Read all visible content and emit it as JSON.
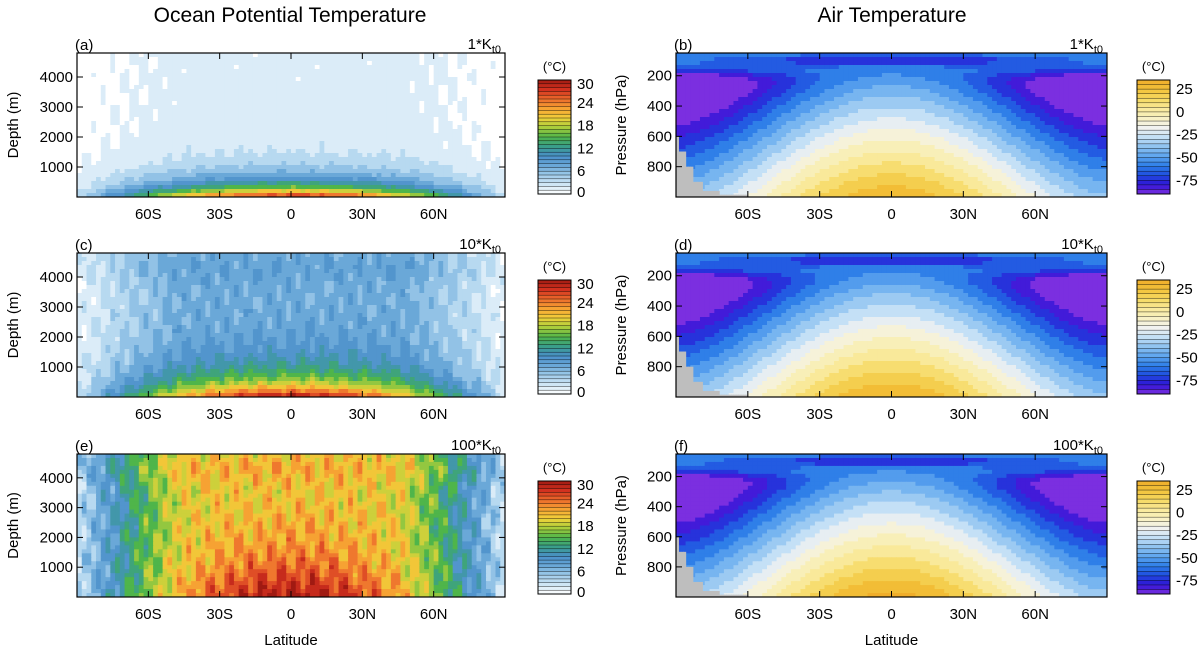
{
  "column_titles": [
    "Ocean Potential Temperature",
    "Air Temperature"
  ],
  "chart_data": [
    {
      "type": "heatmap",
      "id": "a",
      "panel_label": "(a)",
      "title": "1*K",
      "subscript": "t0",
      "ylabel": "Depth (m)",
      "xlabel": "",
      "xlim": [
        -90,
        90
      ],
      "xticks": [
        -60,
        -30,
        0,
        30,
        60
      ],
      "xticklabels": [
        "60S",
        "30S",
        "0",
        "30N",
        "60N"
      ],
      "ylim": [
        4800,
        0
      ],
      "yticks": [
        1000,
        2000,
        3000,
        4000
      ],
      "yticklabels": [
        "1000",
        "2000",
        "3000",
        "4000"
      ],
      "colorbar": {
        "unit": "(°C)",
        "levels": [
          0,
          30
        ],
        "ticks": [
          "30",
          "24",
          "18",
          "12",
          "6",
          "0"
        ],
        "scheme": "ocean"
      },
      "field": {
        "kind": "ocean",
        "surface": 28,
        "deep": 1.5,
        "thermocline": 500,
        "deep_warm": 0,
        "noise": 0.3
      }
    },
    {
      "type": "heatmap",
      "id": "b",
      "panel_label": "(b)",
      "title": "1*K",
      "subscript": "t0",
      "ylabel": "Pressure (hPa)",
      "xlabel": "",
      "xlim": [
        -90,
        90
      ],
      "xticks": [
        -60,
        -30,
        0,
        30,
        60
      ],
      "xticklabels": [
        "60S",
        "30S",
        "0",
        "30N",
        "60N"
      ],
      "ylim": [
        50,
        1000
      ],
      "yticks": [
        200,
        400,
        600,
        800
      ],
      "yticklabels": [
        "200",
        "400",
        "600",
        "800"
      ],
      "colorbar": {
        "unit": "(°C)",
        "levels": [
          -90,
          35
        ],
        "ticks": [
          "25",
          "0",
          "-25",
          "-50",
          "-75"
        ],
        "tickvals": [
          25,
          0,
          -25,
          -50,
          -75
        ],
        "scheme": "air"
      },
      "field": {
        "kind": "air",
        "surface": 30,
        "offset": 0
      }
    },
    {
      "type": "heatmap",
      "id": "c",
      "panel_label": "(c)",
      "title": "10*K",
      "subscript": "t0",
      "ylabel": "Depth (m)",
      "xlabel": "",
      "xlim": [
        -90,
        90
      ],
      "xticks": [
        -60,
        -30,
        0,
        30,
        60
      ],
      "xticklabels": [
        "60S",
        "30S",
        "0",
        "30N",
        "60N"
      ],
      "ylim": [
        4800,
        0
      ],
      "yticks": [
        1000,
        2000,
        3000,
        4000
      ],
      "yticklabels": [
        "1000",
        "2000",
        "3000",
        "4000"
      ],
      "colorbar": {
        "unit": "(°C)",
        "levels": [
          0,
          30
        ],
        "ticks": [
          "30",
          "24",
          "18",
          "12",
          "6",
          "0"
        ],
        "scheme": "ocean"
      },
      "field": {
        "kind": "ocean",
        "surface": 29,
        "deep": 7,
        "thermocline": 700,
        "deep_warm": 1,
        "noise": 0.8
      }
    },
    {
      "type": "heatmap",
      "id": "d",
      "panel_label": "(d)",
      "title": "10*K",
      "subscript": "t0",
      "ylabel": "Pressure (hPa)",
      "xlabel": "",
      "xlim": [
        -90,
        90
      ],
      "xticks": [
        -60,
        -30,
        0,
        30,
        60
      ],
      "xticklabels": [
        "60S",
        "30S",
        "0",
        "30N",
        "60N"
      ],
      "ylim": [
        50,
        1000
      ],
      "yticks": [
        200,
        400,
        600,
        800
      ],
      "yticklabels": [
        "200",
        "400",
        "600",
        "800"
      ],
      "colorbar": {
        "unit": "(°C)",
        "levels": [
          -90,
          35
        ],
        "ticks": [
          "25",
          "0",
          "-25",
          "-50",
          "-75"
        ],
        "tickvals": [
          25,
          0,
          -25,
          -50,
          -75
        ],
        "scheme": "air"
      },
      "field": {
        "kind": "air",
        "surface": 31,
        "offset": 2
      }
    },
    {
      "type": "heatmap",
      "id": "e",
      "panel_label": "(e)",
      "title": "100*K",
      "subscript": "t0",
      "ylabel": "Depth (m)",
      "xlabel": "Latitude",
      "xlim": [
        -90,
        90
      ],
      "xticks": [
        -60,
        -30,
        0,
        30,
        60
      ],
      "xticklabels": [
        "60S",
        "30S",
        "0",
        "30N",
        "60N"
      ],
      "ylim": [
        4800,
        0
      ],
      "yticks": [
        1000,
        2000,
        3000,
        4000
      ],
      "yticklabels": [
        "1000",
        "2000",
        "3000",
        "4000"
      ],
      "colorbar": {
        "unit": "(°C)",
        "levels": [
          0,
          30
        ],
        "ticks": [
          "30",
          "24",
          "18",
          "12",
          "6",
          "0"
        ],
        "scheme": "ocean"
      },
      "field": {
        "kind": "ocean",
        "surface": 29,
        "deep": 19,
        "thermocline": 1800,
        "deep_warm": 2,
        "noise": 1.6
      }
    },
    {
      "type": "heatmap",
      "id": "f",
      "panel_label": "(f)",
      "title": "100*K",
      "subscript": "t0",
      "ylabel": "Pressure (hPa)",
      "xlabel": "Latitude",
      "xlim": [
        -90,
        90
      ],
      "xticks": [
        -60,
        -30,
        0,
        30,
        60
      ],
      "xticklabels": [
        "60S",
        "30S",
        "0",
        "30N",
        "60N"
      ],
      "ylim": [
        50,
        1000
      ],
      "yticks": [
        200,
        400,
        600,
        800
      ],
      "yticklabels": [
        "200",
        "400",
        "600",
        "800"
      ],
      "colorbar": {
        "unit": "(°C)",
        "levels": [
          -90,
          35
        ],
        "ticks": [
          "25",
          "0",
          "-25",
          "-50",
          "-75"
        ],
        "tickvals": [
          25,
          0,
          -25,
          -50,
          -75
        ],
        "scheme": "air"
      },
      "field": {
        "kind": "air",
        "surface": 32,
        "offset": 5
      }
    }
  ],
  "colors": {
    "land": "#bebebe",
    "ocean_ramp": [
      "#ffffff",
      "#cfe6f5",
      "#9fcbea",
      "#6aa8d8",
      "#4a8fc9",
      "#3a9e8a",
      "#4fb54a",
      "#a9cd3c",
      "#f1d23a",
      "#f6a233",
      "#ec6a2c",
      "#d2311f",
      "#a01a12"
    ],
    "air_ramp": [
      "#7b2fe0",
      "#2f14d6",
      "#1f4fe0",
      "#2f7fe8",
      "#5fa6ef",
      "#8fc3f0",
      "#c4e0f6",
      "#f3f3f0",
      "#f8f1c2",
      "#f9e99a",
      "#f6d962",
      "#f2c23a",
      "#f0ad2a"
    ]
  }
}
